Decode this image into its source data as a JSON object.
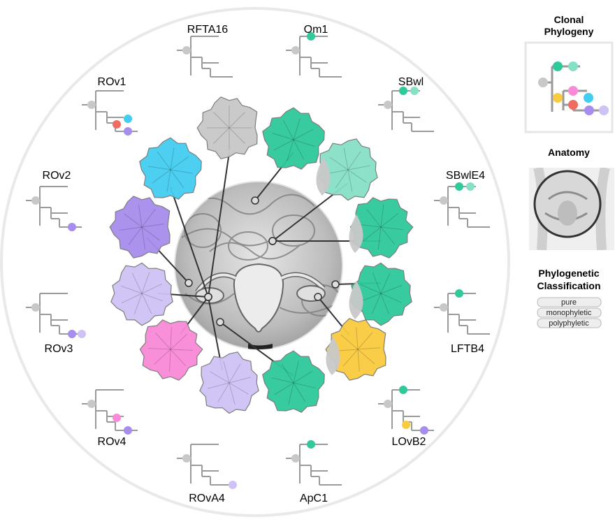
{
  "sidebar": {
    "clonal_phylogeny_title_line1": "Clonal",
    "clonal_phylogeny_title_line2": "Phylogeny",
    "anatomy_title": "Anatomy",
    "classification_title_line1": "Phylogenetic",
    "classification_title_line2": "Classification",
    "classification_items": [
      "pure",
      "monophyletic",
      "polyphyletic"
    ]
  },
  "clone_colors": {
    "germline": "#c8c8c8",
    "teal": "#2fc99b",
    "mint": "#86e0c6",
    "pink": "#f98ad8",
    "sky": "#43cdf0",
    "red": "#ef6d60",
    "yellow": "#f9cb3e",
    "purple": "#a78ded",
    "lavender": "#cfc2f5"
  },
  "sites": [
    {
      "id": "RFTA16",
      "label": "RFTA16",
      "clones": []
    },
    {
      "id": "Om1",
      "label": "Om1",
      "clones": [
        "teal"
      ]
    },
    {
      "id": "SBwl",
      "label": "SBwl",
      "clones": [
        "teal",
        "mint"
      ]
    },
    {
      "id": "SBwlE4",
      "label": "SBwlE4",
      "clones": [
        "teal",
        "mint"
      ]
    },
    {
      "id": "LFTB4",
      "label": "LFTB4",
      "clones": [
        "teal"
      ]
    },
    {
      "id": "LOvB2",
      "label": "LOvB2",
      "clones": [
        "teal",
        "yellow",
        "purple"
      ]
    },
    {
      "id": "ApC1",
      "label": "ApC1",
      "clones": [
        "teal"
      ]
    },
    {
      "id": "ROvA4",
      "label": "ROvA4",
      "clones": [
        "lavender"
      ]
    },
    {
      "id": "ROv4",
      "label": "ROv4",
      "clones": [
        "pink",
        "purple"
      ]
    },
    {
      "id": "ROv3",
      "label": "ROv3",
      "clones": [
        "purple",
        "lavender"
      ]
    },
    {
      "id": "ROv2",
      "label": "ROv2",
      "clones": [
        "purple"
      ]
    },
    {
      "id": "ROv1",
      "label": "ROv1",
      "clones": [
        "sky",
        "red",
        "purple"
      ]
    }
  ]
}
